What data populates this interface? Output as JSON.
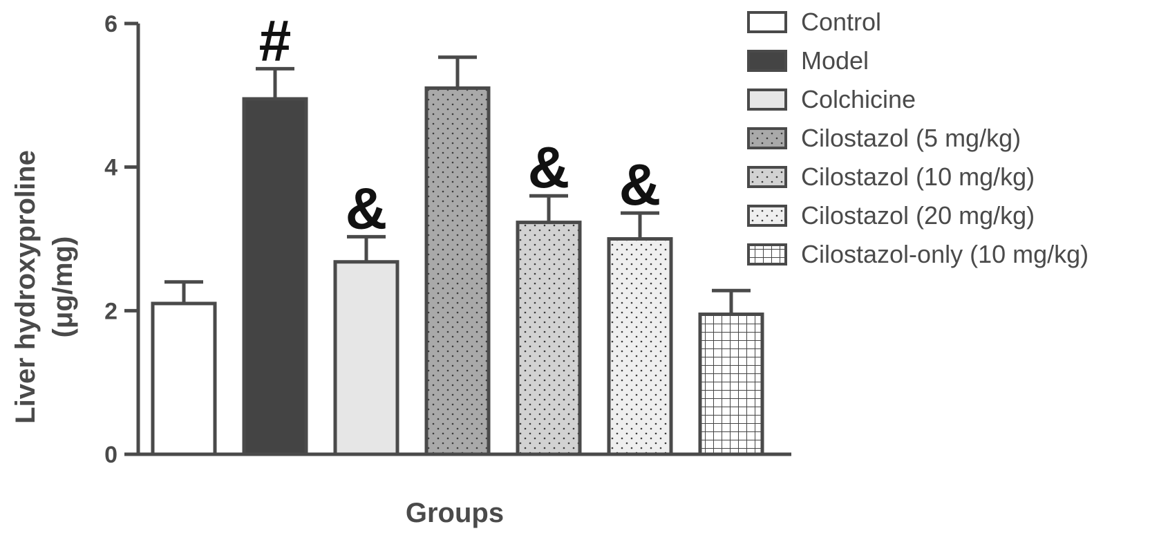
{
  "chart_data": {
    "type": "bar",
    "xlabel": "Groups",
    "ylabel_lines": [
      "Liver hydroxyproline",
      "(μg/mg)"
    ],
    "ylim": [
      0,
      6
    ],
    "yticks": [
      "0",
      "2",
      "4",
      "6"
    ],
    "legend_position": "right",
    "series": [
      {
        "name": "Control",
        "value": 2.1,
        "error": 0.3,
        "marker": "",
        "fill": "#ffffff",
        "pattern": "none"
      },
      {
        "name": "Model",
        "value": 4.95,
        "error": 0.42,
        "marker": "#",
        "fill": "#444444",
        "pattern": "none"
      },
      {
        "name": "Colchicine",
        "value": 2.68,
        "error": 0.35,
        "marker": "&",
        "fill": "#e6e6e6",
        "pattern": "none"
      },
      {
        "name": "Cilostazol (5 mg/kg)",
        "value": 5.1,
        "error": 0.43,
        "marker": "",
        "fill": "#a9a9a9",
        "pattern": "dots"
      },
      {
        "name": "Cilostazol (10 mg/kg)",
        "value": 3.23,
        "error": 0.37,
        "marker": "&",
        "fill": "#d2d2d2",
        "pattern": "dots"
      },
      {
        "name": "Cilostazol (20 mg/kg)",
        "value": 3.0,
        "error": 0.36,
        "marker": "&",
        "fill": "#efefef",
        "pattern": "dots"
      },
      {
        "name": "Cilostazol-only (10 mg/kg)",
        "value": 1.95,
        "error": 0.33,
        "marker": "",
        "fill": "#ffffff",
        "pattern": "grid"
      }
    ]
  }
}
